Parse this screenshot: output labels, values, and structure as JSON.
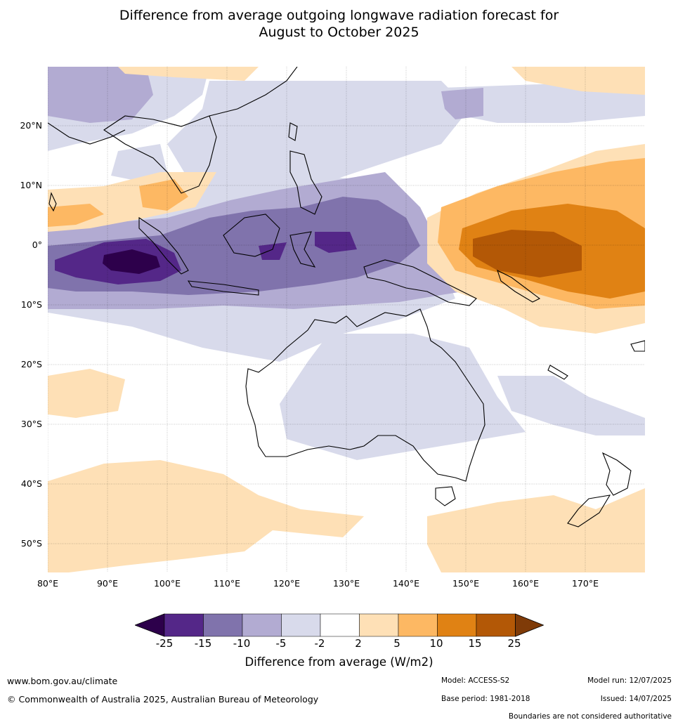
{
  "title_line1": "Difference from average outgoing longwave radiation forecast for",
  "title_line2": "August to October 2025",
  "map": {
    "lat_labels": [
      "20°N",
      "10°N",
      "0°",
      "10°S",
      "20°S",
      "30°S",
      "40°S",
      "50°S"
    ],
    "lon_labels": [
      "80°E",
      "90°E",
      "100°E",
      "110°E",
      "120°E",
      "130°E",
      "140°E",
      "150°E",
      "160°E",
      "170°E"
    ]
  },
  "colorbar": {
    "ticks": [
      "-25",
      "-15",
      "-10",
      "-5",
      "-2",
      "2",
      "5",
      "10",
      "15",
      "25"
    ],
    "colors": [
      "#2d004b",
      "#542788",
      "#8073ac",
      "#b2abd2",
      "#d8daeb",
      "#ffffff",
      "#fee0b6",
      "#fdb863",
      "#e08214",
      "#b35806",
      "#7f3b08"
    ],
    "title": "Difference from average (W/m2)"
  },
  "footer": {
    "url": "www.bom.gov.au/climate",
    "copyright": "© Commonwealth of Australia 2025, Australian Bureau of Meteorology",
    "model": "Model: ACCESS-S2",
    "base_period": "Base period: 1981-2018",
    "model_run": "Model run: 12/07/2025",
    "issued": "Issued: 14/07/2025",
    "disclaimer": "Boundaries are not considered authoritative"
  }
}
